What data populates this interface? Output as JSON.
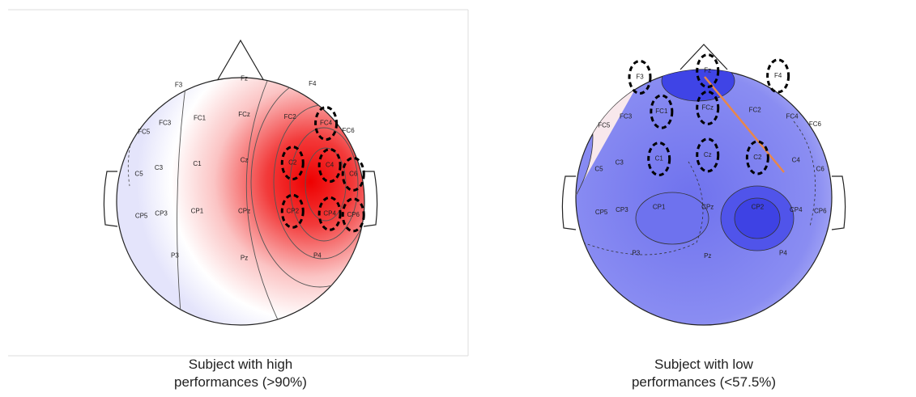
{
  "panels": [
    {
      "electrodes": [
        "F3",
        "Fz",
        "F4",
        "FC5",
        "FC3",
        "FC1",
        "FCz",
        "FC2",
        "FC4",
        "FC6",
        "C5",
        "C3",
        "C1",
        "Cz",
        "C2",
        "C4",
        "C6",
        "CP5",
        "CP3",
        "CP1",
        "CPz",
        "CP2",
        "CP4",
        "CP6",
        "P3",
        "Pz",
        "P4"
      ],
      "caption": [
        "Subject with high",
        "performances (>90%)"
      ]
    },
    {
      "electrodes": [
        "F3",
        "Fz",
        "F4",
        "FC5",
        "FC3",
        "FC1",
        "FCz",
        "FC2",
        "FC4",
        "FC6",
        "C5",
        "C3",
        "C1",
        "Cz",
        "C2",
        "C4",
        "C6",
        "CP5",
        "CP3",
        "CP1",
        "CPz",
        "CP2",
        "CP4",
        "CP6",
        "P3",
        "Pz",
        "P4"
      ],
      "caption": [
        "Subject with low",
        "performances (<57.5%)"
      ]
    }
  ]
}
